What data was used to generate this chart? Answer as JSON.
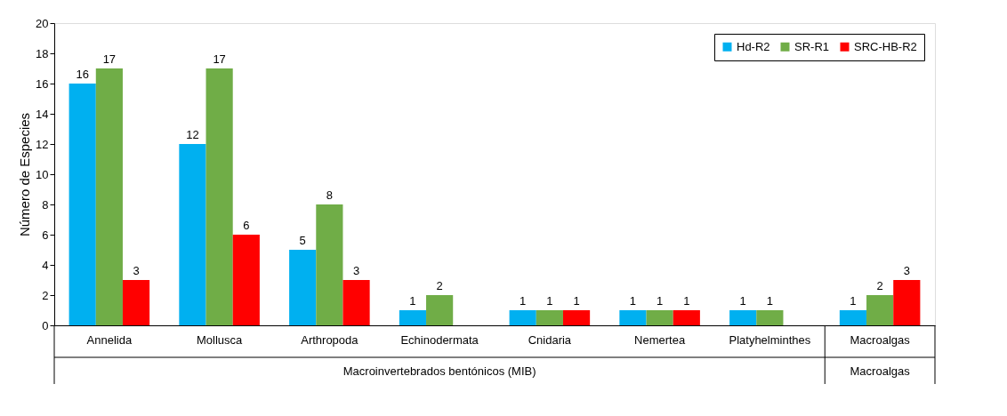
{
  "chart_data": {
    "type": "bar",
    "ylabel": "Número de Especies",
    "categories": [
      "Annelida",
      "Mollusca",
      "Arthropoda",
      "Echinodermata",
      "Cnidaria",
      "Nemertea",
      "Platyhelminthes",
      "Macroalgas"
    ],
    "series": [
      {
        "name": "Hd-R2",
        "color": "#00b0f0",
        "values": [
          16,
          12,
          5,
          1,
          1,
          1,
          1,
          1
        ]
      },
      {
        "name": "SR-R1",
        "color": "#70ad47",
        "values": [
          17,
          17,
          8,
          2,
          1,
          1,
          1,
          2
        ]
      },
      {
        "name": "SRC-HB-R2",
        "color": "#ff0000",
        "values": [
          3,
          6,
          3,
          null,
          1,
          1,
          null,
          3
        ]
      }
    ],
    "ylim": [
      0,
      20
    ],
    "yticks": [
      0,
      2,
      4,
      6,
      8,
      10,
      12,
      14,
      16,
      18,
      20
    ],
    "data_labels": true,
    "grid": false,
    "legend": "top right",
    "annotations": [
      "Macroinvertebrados bentónicos (MIB)",
      "Macroalgas"
    ]
  }
}
